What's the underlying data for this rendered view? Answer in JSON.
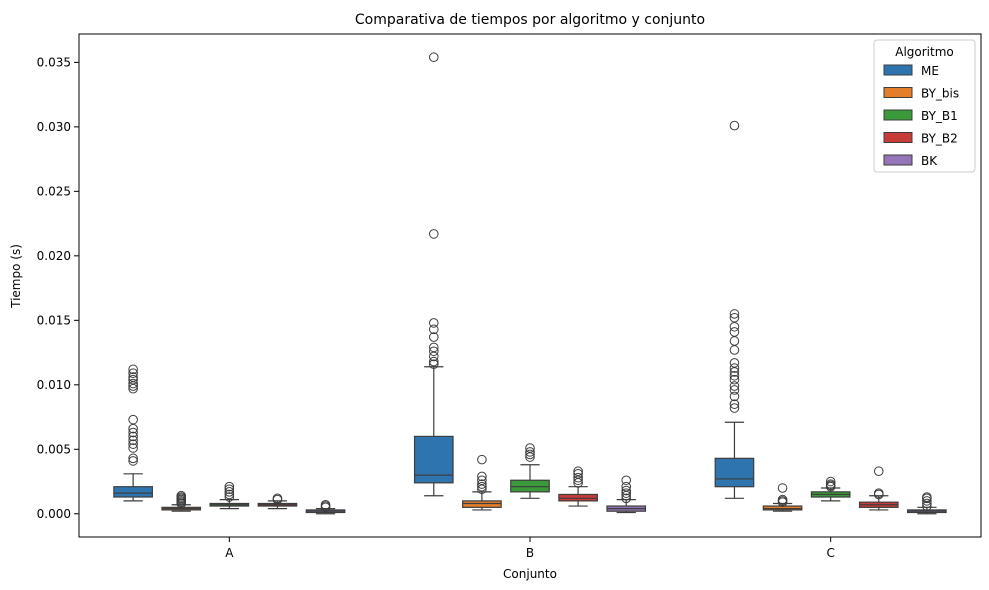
{
  "chart_data": {
    "type": "boxplot",
    "title": "Comparativa de tiempos por algoritmo y conjunto",
    "xlabel": "Conjunto",
    "ylabel": "Tiempo (s)",
    "categories": [
      "A",
      "B",
      "C"
    ],
    "ylim": [
      -0.0018,
      0.0372
    ],
    "yticks": [
      0.0,
      0.005,
      0.01,
      0.015,
      0.02,
      0.025,
      0.03,
      0.035
    ],
    "ytick_labels": [
      "0.000",
      "0.005",
      "0.010",
      "0.015",
      "0.020",
      "0.025",
      "0.030",
      "0.035"
    ],
    "grid": false,
    "legend": {
      "title": "Algoritmo",
      "placement": "top-right"
    },
    "series": [
      {
        "name": "ME",
        "color": "#2e75b0",
        "boxes": [
          {
            "category": "A",
            "q1": 0.0013,
            "median": 0.0016,
            "q3": 0.0021,
            "whisker_low": 0.001,
            "whisker_high": 0.0031,
            "outliers": [
              0.0041,
              0.0043,
              0.0051,
              0.0054,
              0.0057,
              0.006,
              0.0063,
              0.0066,
              0.0073,
              0.0097,
              0.0099,
              0.0101,
              0.0104,
              0.0106,
              0.0109,
              0.0112
            ]
          },
          {
            "category": "B",
            "q1": 0.0024,
            "median": 0.003,
            "q3": 0.006,
            "whisker_low": 0.0014,
            "whisker_high": 0.0114,
            "outliers": [
              0.0116,
              0.0118,
              0.0122,
              0.0126,
              0.0129,
              0.0137,
              0.0143,
              0.0148,
              0.0217,
              0.0354
            ]
          },
          {
            "category": "C",
            "q1": 0.0021,
            "median": 0.0027,
            "q3": 0.0043,
            "whisker_low": 0.0012,
            "whisker_high": 0.0071,
            "outliers": [
              0.0082,
              0.0085,
              0.0091,
              0.0096,
              0.0099,
              0.0104,
              0.0107,
              0.011,
              0.0113,
              0.0117,
              0.0127,
              0.0134,
              0.0141,
              0.0145,
              0.0152,
              0.0155,
              0.0301
            ]
          }
        ]
      },
      {
        "name": "BY_bis",
        "color": "#e57e2a",
        "boxes": [
          {
            "category": "A",
            "q1": 0.0003,
            "median": 0.0004,
            "q3": 0.0005,
            "whisker_low": 0.0002,
            "whisker_high": 0.0007,
            "outliers": [
              0.0008,
              0.0009,
              0.001,
              0.0011,
              0.0012,
              0.0013,
              0.0014
            ]
          },
          {
            "category": "B",
            "q1": 0.0005,
            "median": 0.0008,
            "q3": 0.001,
            "whisker_low": 0.0003,
            "whisker_high": 0.0017,
            "outliers": [
              0.0019,
              0.0021,
              0.0023,
              0.0026,
              0.0029,
              0.0042
            ]
          },
          {
            "category": "C",
            "q1": 0.0003,
            "median": 0.0004,
            "q3": 0.0006,
            "whisker_low": 0.0002,
            "whisker_high": 0.0008,
            "outliers": [
              0.0009,
              0.001,
              0.0011,
              0.002
            ]
          }
        ]
      },
      {
        "name": "BY_B1",
        "color": "#3a9a3a",
        "boxes": [
          {
            "category": "A",
            "q1": 0.0006,
            "median": 0.0007,
            "q3": 0.0008,
            "whisker_low": 0.0004,
            "whisker_high": 0.0011,
            "outliers": [
              0.0013,
              0.0015,
              0.0017,
              0.0019,
              0.0021
            ]
          },
          {
            "category": "B",
            "q1": 0.0017,
            "median": 0.0021,
            "q3": 0.0026,
            "whisker_low": 0.0012,
            "whisker_high": 0.0038,
            "outliers": [
              0.0044,
              0.0046,
              0.0048,
              0.0051
            ]
          },
          {
            "category": "C",
            "q1": 0.0013,
            "median": 0.0015,
            "q3": 0.0017,
            "whisker_low": 0.001,
            "whisker_high": 0.002,
            "outliers": [
              0.0021,
              0.0022,
              0.0023,
              0.0025
            ]
          }
        ]
      },
      {
        "name": "BY_B2",
        "color": "#c83b3b",
        "boxes": [
          {
            "category": "A",
            "q1": 0.0006,
            "median": 0.0007,
            "q3": 0.0008,
            "whisker_low": 0.0004,
            "whisker_high": 0.001,
            "outliers": [
              0.0011,
              0.0012
            ]
          },
          {
            "category": "B",
            "q1": 0.001,
            "median": 0.0012,
            "q3": 0.0015,
            "whisker_low": 0.0006,
            "whisker_high": 0.0021,
            "outliers": [
              0.0024,
              0.0026,
              0.0028,
              0.0031,
              0.0033
            ]
          },
          {
            "category": "C",
            "q1": 0.0005,
            "median": 0.0007,
            "q3": 0.0009,
            "whisker_low": 0.0003,
            "whisker_high": 0.0014,
            "outliers": [
              0.0015,
              0.0016,
              0.0033
            ]
          }
        ]
      },
      {
        "name": "BK",
        "color": "#9575b8",
        "boxes": [
          {
            "category": "A",
            "q1": 0.0001,
            "median": 0.0002,
            "q3": 0.0003,
            "whisker_low": 0.0,
            "whisker_high": 0.0004,
            "outliers": [
              0.0005,
              0.0006,
              0.0007
            ]
          },
          {
            "category": "B",
            "q1": 0.0002,
            "median": 0.0004,
            "q3": 0.0006,
            "whisker_low": 0.0001,
            "whisker_high": 0.0011,
            "outliers": [
              0.0012,
              0.0014,
              0.0016,
              0.0018,
              0.0021,
              0.0026
            ]
          },
          {
            "category": "C",
            "q1": 0.0001,
            "median": 0.0002,
            "q3": 0.0003,
            "whisker_low": 0.0,
            "whisker_high": 0.0005,
            "outliers": [
              0.0006,
              0.0008,
              0.001,
              0.0012,
              0.0013
            ]
          }
        ]
      }
    ]
  }
}
